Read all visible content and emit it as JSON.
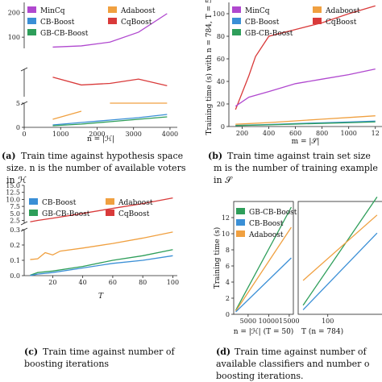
{
  "colors": {
    "MinCq": "#b048cf",
    "Adaboost": "#f0a040",
    "CB-Boost": "#3a8fd6",
    "CqBoost": "#d93a3a",
    "GB-CB-Boost": "#2e9e5a"
  },
  "captions": {
    "a": {
      "tag": "(a)",
      "lines": [
        "Train time against hypothesis space",
        "size. n is the number of available voters",
        "in ℋ"
      ]
    },
    "b": {
      "tag": "(b)",
      "lines": [
        "Train time against train set size",
        "m is the number of training example",
        "in 𝒮"
      ]
    },
    "c": {
      "tag": "(c)",
      "lines": [
        "Train time against number of",
        "boosting iterations"
      ]
    },
    "d": {
      "tag": "(d)",
      "lines": [
        "Train time against number of",
        "available classifiers and number o",
        "boosting iterations."
      ]
    }
  },
  "chart_data": [
    {
      "id": "a",
      "type": "line",
      "xlabel": "n = |ℋ|",
      "ylabel": "",
      "xlim": [
        0,
        4200
      ],
      "ylim": [
        0,
        240
      ],
      "broken_y_axis": true,
      "x_ticks": [
        "0",
        "1000",
        "2000",
        "3000",
        "4000"
      ],
      "y_ticks": [
        "0",
        "5",
        "100",
        "200"
      ],
      "legend": {
        "placement": "top",
        "entries": [
          "MinCq",
          "Adaboost",
          "CB-Boost",
          "CqBoost",
          "GB-CB-Boost"
        ]
      },
      "series": [
        {
          "name": "MinCq",
          "x": [
            784,
            1568,
            2352,
            3136,
            3920
          ],
          "y": [
            60,
            65,
            80,
            120,
            195
          ]
        },
        {
          "name": "CqBoost",
          "x": [
            784,
            1568,
            2352,
            3136,
            3920
          ],
          "y": [
            15.0,
            13.0,
            13.4,
            14.5,
            12.8
          ]
        },
        {
          "name": "Adaboost",
          "x": [
            784,
            1568,
            2352,
            3136,
            3920
          ],
          "y": [
            1.0,
            2.0,
            3.1,
            4.2,
            5.5
          ]
        },
        {
          "name": "CB-Boost",
          "x": [
            784,
            1568,
            2352,
            3136,
            3920
          ],
          "y": [
            0.3,
            0.6,
            0.9,
            1.2,
            1.6
          ]
        },
        {
          "name": "GB-CB-Boost",
          "x": [
            784,
            1568,
            2352,
            3136,
            3920
          ],
          "y": [
            0.2,
            0.4,
            0.7,
            1.0,
            1.3
          ]
        }
      ]
    },
    {
      "id": "b",
      "type": "line",
      "xlabel": "m = |𝒮|",
      "ylabel": "Training time (s) with n = 784, T = 50",
      "xlim": [
        100,
        1250
      ],
      "ylim": [
        0,
        110
      ],
      "x_ticks": [
        "200",
        "400",
        "600",
        "800",
        "1000",
        "12"
      ],
      "y_ticks": [
        "0",
        "20",
        "40",
        "60",
        "80",
        "100"
      ],
      "legend": {
        "placement": "top",
        "entries": [
          "MinCq",
          "Adaboost",
          "CB-Boost",
          "CqBoost",
          "GB-CB-Boost"
        ]
      },
      "series": [
        {
          "name": "CqBoost",
          "x": [
            150,
            200,
            250,
            300,
            400,
            600,
            800,
            1000,
            1200
          ],
          "y": [
            15,
            30,
            45,
            62,
            80,
            86,
            92,
            100,
            107
          ]
        },
        {
          "name": "MinCq",
          "x": [
            150,
            250,
            400,
            600,
            800,
            1000,
            1200
          ],
          "y": [
            18,
            26,
            31,
            38,
            42,
            46,
            51
          ]
        },
        {
          "name": "Adaboost",
          "x": [
            150,
            400,
            600,
            800,
            1000,
            1200
          ],
          "y": [
            2,
            3.5,
            5,
            6.5,
            8,
            9.5
          ]
        },
        {
          "name": "CB-Boost",
          "x": [
            150,
            400,
            600,
            800,
            1000,
            1200
          ],
          "y": [
            1,
            1.8,
            2.6,
            3.3,
            4,
            4.8
          ]
        },
        {
          "name": "GB-CB-Boost",
          "x": [
            150,
            400,
            600,
            800,
            1000,
            1200
          ],
          "y": [
            0.8,
            1.5,
            2.2,
            2.8,
            3.4,
            4.1
          ]
        }
      ]
    },
    {
      "id": "c",
      "type": "line",
      "xlabel": "T",
      "ylabel": "",
      "xlim": [
        1,
        103
      ],
      "ylim": [
        0,
        15
      ],
      "broken_y_axis": true,
      "x_ticks": [
        "20",
        "40",
        "60",
        "80",
        "100"
      ],
      "y_ticks": [
        "0.0",
        "0.1",
        "0.2",
        "0.3",
        "2.5",
        "5.0",
        "7.5",
        "10.0",
        "12.5",
        "15.0"
      ],
      "legend": {
        "placement": "top",
        "entries": [
          "CB-Boost",
          "Adaboost",
          "GB-CB-Boost",
          "CqBoost"
        ]
      },
      "series": [
        {
          "name": "CqBoost",
          "x": [
            5,
            10,
            20,
            40,
            60,
            80,
            100
          ],
          "y": [
            2.0,
            2.5,
            3.3,
            5.0,
            6.8,
            8.5,
            10.5
          ]
        },
        {
          "name": "Adaboost",
          "x": [
            5,
            10,
            15,
            20,
            25,
            40,
            60,
            80,
            100
          ],
          "y": [
            0.105,
            0.11,
            0.15,
            0.135,
            0.16,
            0.18,
            0.21,
            0.245,
            0.285
          ]
        },
        {
          "name": "GB-CB-Boost",
          "x": [
            5,
            10,
            20,
            40,
            60,
            80,
            100
          ],
          "y": [
            0.003,
            0.02,
            0.03,
            0.06,
            0.1,
            0.13,
            0.17
          ]
        },
        {
          "name": "CB-Boost",
          "x": [
            5,
            10,
            20,
            40,
            60,
            80,
            100
          ],
          "y": [
            0.001,
            0.01,
            0.02,
            0.05,
            0.08,
            0.1,
            0.13
          ]
        }
      ]
    },
    {
      "id": "d",
      "type": "line",
      "xlabel": "n = |ℋ| (T = 50)",
      "ylabel": "Training time (s)",
      "xlim": [
        1500,
        16000
      ],
      "ylim": [
        0,
        14
      ],
      "x_ticks": [
        "5000",
        "10000",
        "15000"
      ],
      "y_ticks": [
        "0",
        "2",
        "4",
        "6",
        "8",
        "10",
        "12"
      ],
      "legend": {
        "placement": "top-left",
        "entries": [
          "GB-CB-Boost",
          "CB-Boost",
          "Adaboost"
        ]
      },
      "series": [
        {
          "name": "GB-CB-Boost",
          "x": [
            2000,
            15500
          ],
          "y": [
            0.5,
            13.3
          ]
        },
        {
          "name": "Adaboost",
          "x": [
            2000,
            15500
          ],
          "y": [
            0.4,
            10.8
          ]
        },
        {
          "name": "CB-Boost",
          "x": [
            2000,
            15500
          ],
          "y": [
            0.3,
            7.0
          ]
        }
      ]
    },
    {
      "id": "d2",
      "type": "line",
      "xlabel": "T (n = 784)",
      "ylabel": "",
      "xlim": [
        40,
        210
      ],
      "ylim": [
        0,
        2.5
      ],
      "x_ticks": [
        "100"
      ],
      "y_ticks": [],
      "series": [
        {
          "name": "GB-CB-Boost",
          "x": [
            50,
            200
          ],
          "y": [
            0.2,
            2.6
          ]
        },
        {
          "name": "Adaboost",
          "x": [
            50,
            200
          ],
          "y": [
            0.75,
            2.2
          ]
        },
        {
          "name": "CB-Boost",
          "x": [
            50,
            200
          ],
          "y": [
            0.1,
            1.8
          ]
        }
      ]
    }
  ]
}
